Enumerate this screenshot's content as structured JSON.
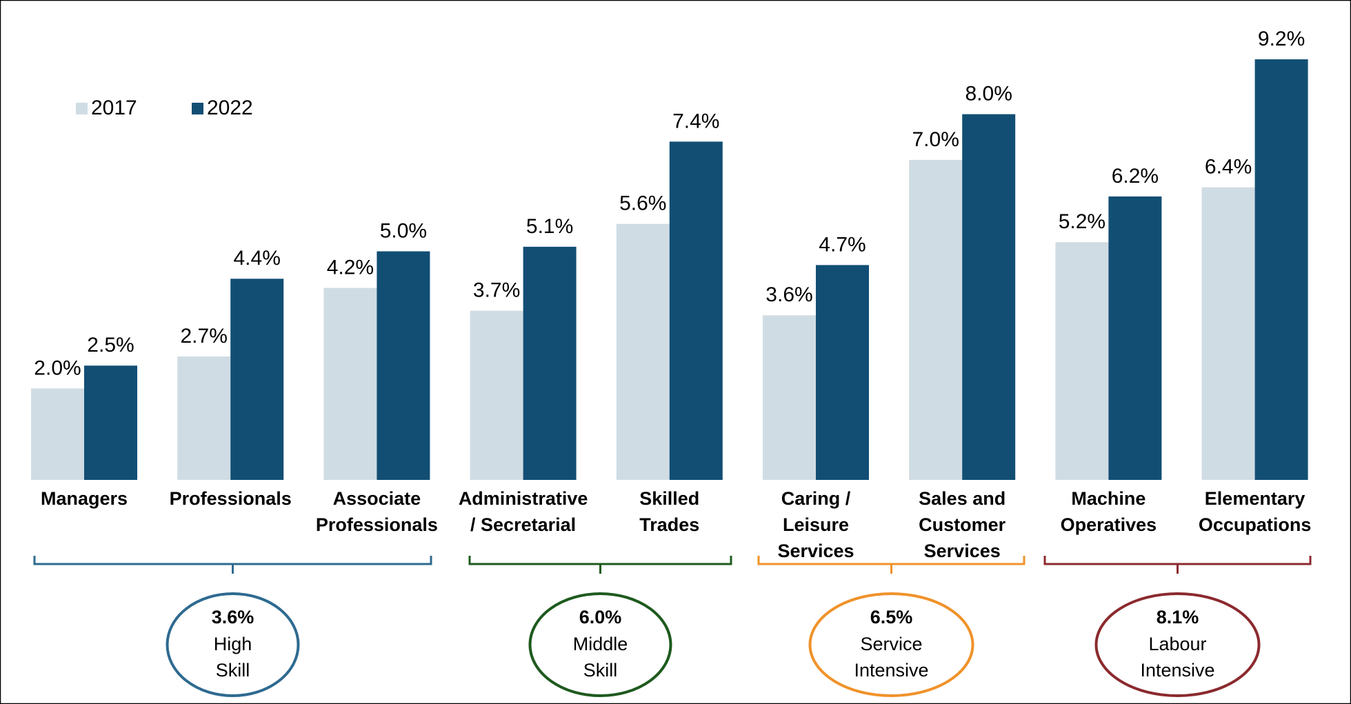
{
  "chart_data": {
    "type": "bar",
    "categories": [
      "Managers",
      "Professionals",
      "Associate\nProfessionals",
      "Administrative\n/ Secretarial",
      "Skilled\nTrades",
      "Caring /\nLeisure\nServices",
      "Sales and\nCustomer\nServices",
      "Machine\nOperatives",
      "Elementary\nOccupations"
    ],
    "series": [
      {
        "name": "2017",
        "color": "#d0dce4",
        "values": [
          2.0,
          2.7,
          4.2,
          3.7,
          5.6,
          3.6,
          7.0,
          5.2,
          6.4
        ],
        "value_labels": [
          "2.0%",
          "2.7%",
          "4.2%",
          "3.7%",
          "5.6%",
          "3.6%",
          "7.0%",
          "5.2%",
          "6.4%"
        ]
      },
      {
        "name": "2022",
        "color": "#124e74",
        "values": [
          2.5,
          4.4,
          5.0,
          5.1,
          7.4,
          4.7,
          8.0,
          6.2,
          9.2
        ],
        "value_labels": [
          "2.5%",
          "4.4%",
          "5.0%",
          "5.1%",
          "7.4%",
          "4.7%",
          "8.0%",
          "6.2%",
          "9.2%"
        ]
      }
    ],
    "legend": "top-left",
    "groups": [
      {
        "value_label": "3.6%",
        "name": "High\nSkill",
        "color": "#2e6a90"
      },
      {
        "value_label": "6.0%",
        "name": "Middle\nSkill",
        "color": "#1e5a1e"
      },
      {
        "value_label": "6.5%",
        "name": "Service\nIntensive",
        "color": "#f0922a"
      },
      {
        "value_label": "8.1%",
        "name": "Labour\nIntensive",
        "color": "#8b2a2e"
      }
    ]
  }
}
